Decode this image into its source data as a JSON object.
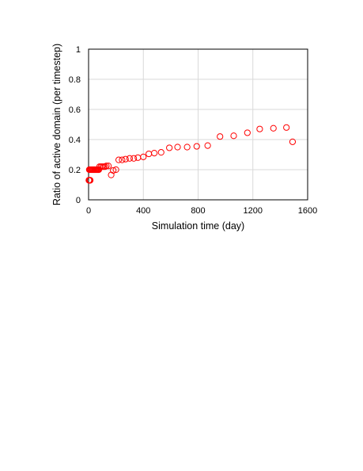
{
  "chart_data": {
    "type": "scatter",
    "title": "",
    "xlabel": "Simulation time (day)",
    "ylabel": "Ratio of active domain (per timestep)",
    "xlim": [
      0,
      1600
    ],
    "ylim": [
      0,
      1
    ],
    "xticks": [
      0,
      400,
      800,
      1200,
      1600
    ],
    "yticks": [
      0,
      0.2,
      0.4,
      0.6,
      0.8,
      1
    ],
    "xtick_labels": [
      "0",
      "400",
      "800",
      "1200",
      "1600"
    ],
    "ytick_labels": [
      "0",
      "0.2",
      "0.4",
      "0.6",
      "0.8",
      "1"
    ],
    "grid": true,
    "legend": "none",
    "marker": "open-circle",
    "color": "#ff0000",
    "series": [
      {
        "x": [
          2,
          4,
          6,
          8,
          10,
          12,
          5,
          9,
          14,
          20,
          25,
          30,
          35,
          40,
          45,
          50,
          55,
          60,
          65,
          70,
          75,
          80,
          90,
          100,
          110,
          120,
          130,
          145,
          165,
          180,
          200,
          220,
          245,
          270,
          300,
          330,
          360,
          400,
          440,
          480,
          530,
          590,
          650,
          720,
          790,
          870,
          960,
          1060,
          1160,
          1250,
          1350,
          1445,
          1490
        ],
        "y": [
          0.13,
          0.13,
          0.13,
          0.13,
          0.13,
          0.13,
          0.2,
          0.2,
          0.2,
          0.2,
          0.2,
          0.2,
          0.2,
          0.2,
          0.2,
          0.2,
          0.2,
          0.2,
          0.2,
          0.2,
          0.2,
          0.22,
          0.22,
          0.22,
          0.22,
          0.22,
          0.225,
          0.225,
          0.165,
          0.195,
          0.2,
          0.265,
          0.265,
          0.27,
          0.275,
          0.275,
          0.28,
          0.285,
          0.305,
          0.31,
          0.315,
          0.345,
          0.35,
          0.35,
          0.355,
          0.36,
          0.42,
          0.425,
          0.445,
          0.47,
          0.475,
          0.48,
          0.385
        ]
      }
    ]
  }
}
